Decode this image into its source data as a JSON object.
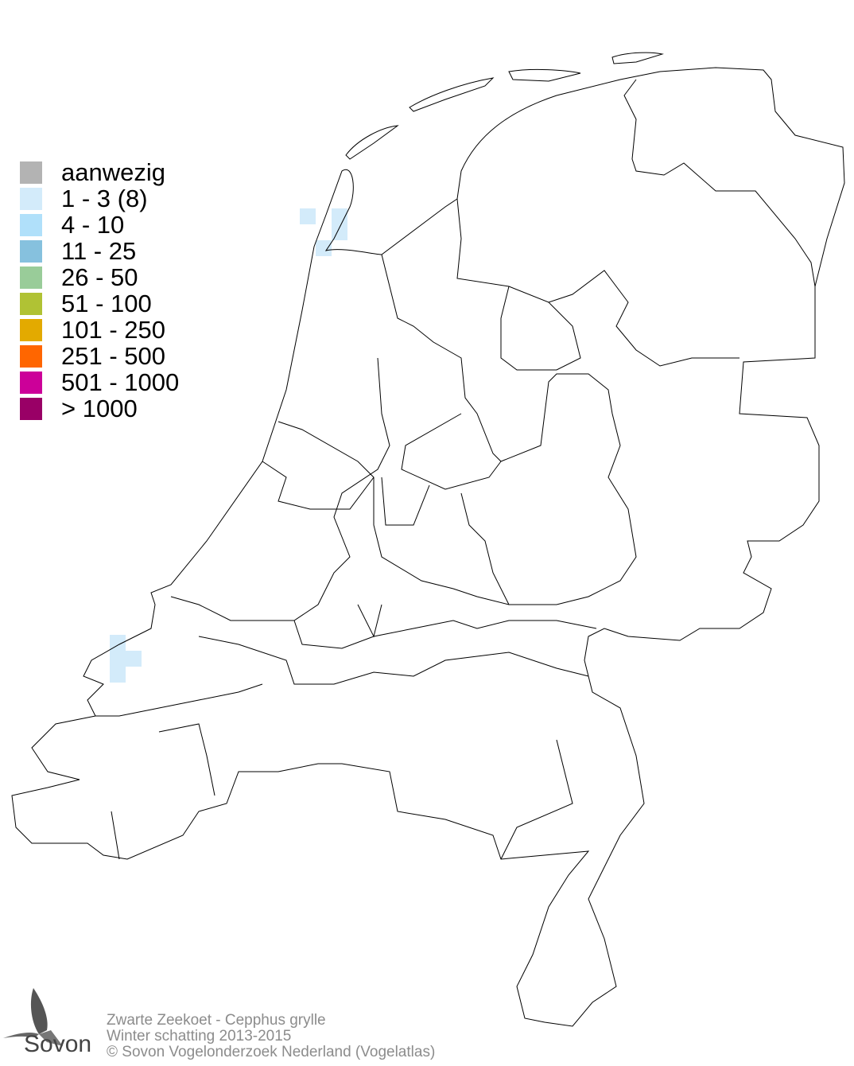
{
  "legend": [
    {
      "label": "aanwezig",
      "color": "#b3b3b3"
    },
    {
      "label": "1 - 3 (8)",
      "color": "#d3ebfa"
    },
    {
      "label": "4 - 10",
      "color": "#b0e0fa"
    },
    {
      "label": "11 - 25",
      "color": "#86c1de"
    },
    {
      "label": "26 - 50",
      "color": "#99cc99"
    },
    {
      "label": "51 - 100",
      "color": "#b0c234"
    },
    {
      "label": "101 - 250",
      "color": "#e3aa00"
    },
    {
      "label": "251 - 500",
      "color": "#ff6600"
    },
    {
      "label": "501 - 1000",
      "color": "#cc0099"
    },
    {
      "label": "> 1000",
      "color": "#990066"
    }
  ],
  "occupied_cells_class": "1 - 3 (8)",
  "footer": {
    "species": "Zwarte Zeekoet - Cepphus grylle",
    "period": "Winter schatting 2013-2015",
    "copyright": "© Sovon Vogelonderzoek Nederland (Vogelatlas)"
  },
  "logo": {
    "text": "Sovon"
  }
}
